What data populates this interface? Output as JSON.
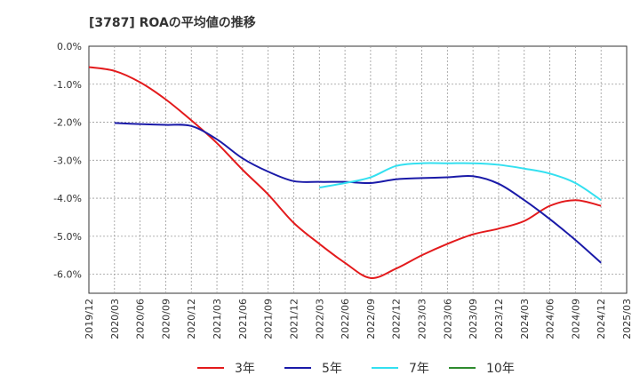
{
  "chart_data": {
    "type": "line",
    "title": "[3787]  ROAの平均値の推移",
    "xlabel": "",
    "ylabel": "",
    "ylim": [
      -6.5,
      0.0
    ],
    "y_ticks": [
      "0.0%",
      "-1.0%",
      "-2.0%",
      "-3.0%",
      "-4.0%",
      "-5.0%",
      "-6.0%"
    ],
    "y_tick_values": [
      0,
      -1,
      -2,
      -3,
      -4,
      -5,
      -6
    ],
    "x_ticks": [
      "2019/12",
      "2020/03",
      "2020/06",
      "2020/09",
      "2020/12",
      "2021/03",
      "2021/06",
      "2021/09",
      "2021/12",
      "2022/03",
      "2022/06",
      "2022/09",
      "2022/12",
      "2023/03",
      "2023/06",
      "2023/09",
      "2023/12",
      "2024/03",
      "2024/06",
      "2024/09",
      "2024/12",
      "2025/03"
    ],
    "grid": true,
    "legend_position": "bottom",
    "series": [
      {
        "name": "3年",
        "color": "#e31a1c",
        "x": [
          "2019/12",
          "2020/03",
          "2020/06",
          "2020/09",
          "2020/12",
          "2021/03",
          "2021/06",
          "2021/09",
          "2021/12",
          "2022/03",
          "2022/06",
          "2022/09",
          "2022/12",
          "2023/03",
          "2023/06",
          "2023/09",
          "2023/12",
          "2024/03",
          "2024/06",
          "2024/09",
          "2024/12"
        ],
        "values": [
          -0.55,
          -0.65,
          -0.95,
          -1.4,
          -1.95,
          -2.55,
          -3.25,
          -3.9,
          -4.65,
          -5.2,
          -5.7,
          -6.1,
          -5.85,
          -5.5,
          -5.2,
          -4.95,
          -4.8,
          -4.6,
          -4.2,
          -4.05,
          -4.2
        ]
      },
      {
        "name": "5年",
        "color": "#1a1aa8",
        "x": [
          "2020/03",
          "2020/06",
          "2020/09",
          "2020/12",
          "2021/03",
          "2021/06",
          "2021/09",
          "2021/12",
          "2022/03",
          "2022/06",
          "2022/09",
          "2022/12",
          "2023/03",
          "2023/06",
          "2023/09",
          "2023/12",
          "2024/03",
          "2024/06",
          "2024/09",
          "2024/12"
        ],
        "values": [
          -2.02,
          -2.05,
          -2.07,
          -2.1,
          -2.45,
          -2.95,
          -3.3,
          -3.55,
          -3.57,
          -3.57,
          -3.6,
          -3.5,
          -3.47,
          -3.45,
          -3.42,
          -3.62,
          -4.05,
          -4.55,
          -5.1,
          -5.7
        ]
      },
      {
        "name": "7年",
        "color": "#33e0f0",
        "x": [
          "2022/03",
          "2022/06",
          "2022/09",
          "2022/12",
          "2023/03",
          "2023/06",
          "2023/09",
          "2023/12",
          "2024/03",
          "2024/06",
          "2024/09",
          "2024/12"
        ],
        "values": [
          -3.72,
          -3.6,
          -3.45,
          -3.15,
          -3.08,
          -3.08,
          -3.08,
          -3.12,
          -3.22,
          -3.35,
          -3.6,
          -4.05
        ]
      },
      {
        "name": "10年",
        "color": "#2e8b2e",
        "x": [],
        "values": []
      }
    ]
  }
}
